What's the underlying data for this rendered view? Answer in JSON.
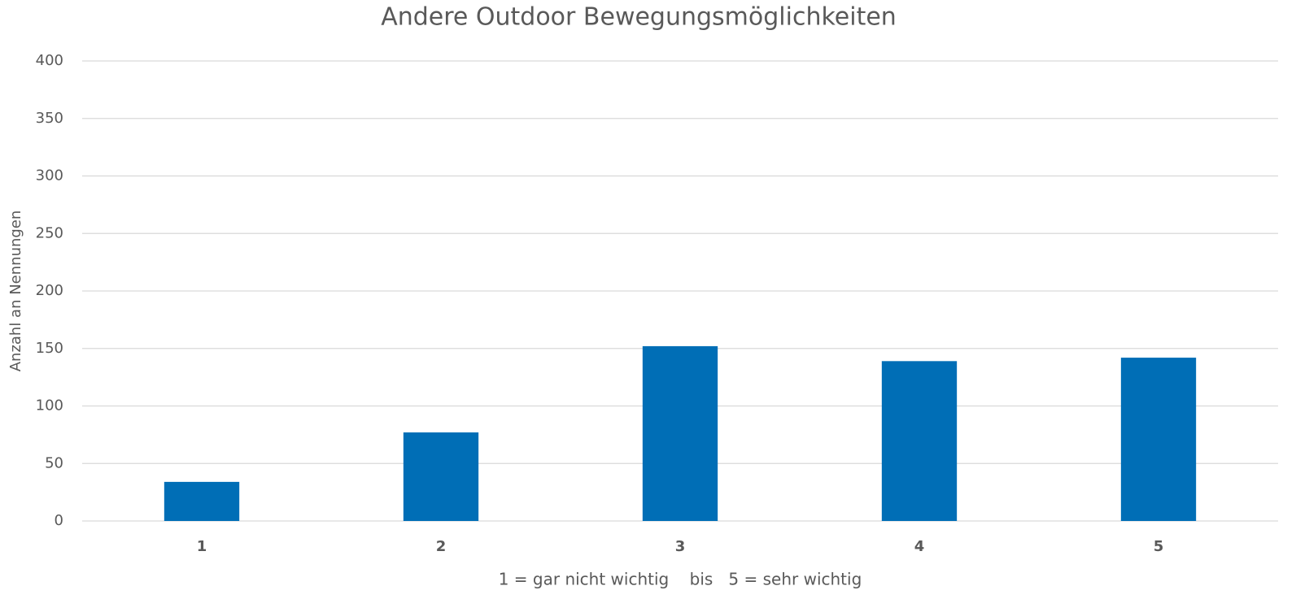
{
  "chart_data": {
    "type": "bar",
    "title": "Andere Outdoor Bewegungsmöglichkeiten",
    "x_label": "1 = gar nicht wichtig    bis   5 = sehr wichtig",
    "y_label": "Anzahl an Nennungen",
    "categories": [
      "1",
      "2",
      "3",
      "4",
      "5"
    ],
    "values": [
      34,
      77,
      152,
      139,
      142
    ],
    "color": "#006eb6",
    "ylim": [
      0,
      400
    ],
    "yticks": [
      0,
      50,
      100,
      150,
      200,
      250,
      300,
      350,
      400
    ],
    "grid": true
  }
}
